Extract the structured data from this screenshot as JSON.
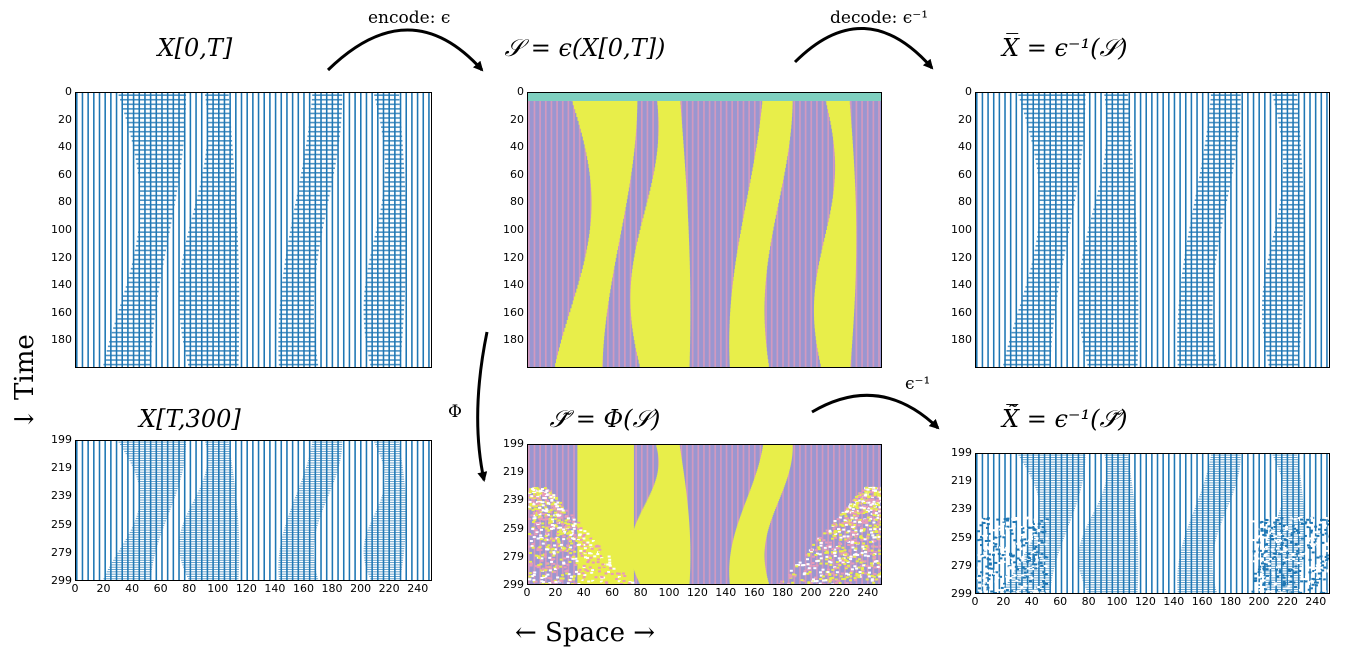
{
  "titles": {
    "x_train": "X[0,T]",
    "s_encoded": "𝒮 = ϵ(X[0,T])",
    "x_decoded": "X̅ = ϵ⁻¹(𝒮)",
    "x_test": "X[T,300]",
    "s_pred": "𝒮̃ = Φ(𝒮)",
    "x_pred": "X̃̅ = ϵ⁻¹(𝒮̃)"
  },
  "arrows": {
    "encode": "encode: ϵ",
    "decode": "decode: ϵ⁻¹",
    "phi": "Φ",
    "inv": "ϵ⁻¹"
  },
  "axis_labels": {
    "time": "↓ Time",
    "space": "← Space →"
  },
  "yticks_top": [
    "0",
    "20",
    "40",
    "60",
    "80",
    "100",
    "120",
    "140",
    "160",
    "180"
  ],
  "yticks_bottom": [
    "199",
    "219",
    "239",
    "259",
    "279",
    "299"
  ],
  "xticks": [
    "0",
    "20",
    "40",
    "60",
    "80",
    "100",
    "120",
    "140",
    "160",
    "180",
    "200",
    "220",
    "240"
  ],
  "colors": {
    "stripe": "#1f77b4",
    "yellow": "#e8ee4a",
    "purple": "#9a96d0",
    "pink": "#e99ab8",
    "teal": "#7fd0c0"
  }
}
